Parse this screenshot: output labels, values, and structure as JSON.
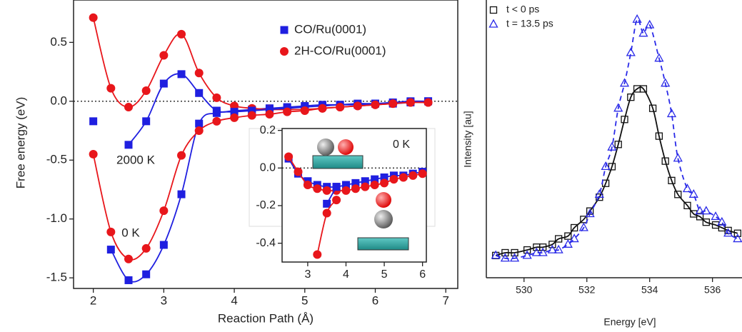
{
  "chart_data": [
    {
      "type": "line",
      "xlabel": "Reaction Path (Å)",
      "ylabel": "Free energy (eV)",
      "x": [
        2.0,
        2.25,
        2.5,
        2.75,
        3.0,
        3.25,
        3.5,
        3.75,
        4.0,
        4.25,
        4.5,
        4.75,
        5.0,
        5.25,
        5.5,
        5.75,
        6.0,
        6.25,
        6.5,
        6.75
      ],
      "series": [
        {
          "name": "CO/Ru(0001)",
          "color": "#1f1fe0",
          "marker": "square",
          "line": "solid",
          "values": [
            -0.17,
            null,
            -0.37,
            -0.17,
            0.15,
            0.23,
            0.07,
            -0.08,
            -0.08,
            -0.07,
            -0.06,
            -0.05,
            -0.04,
            -0.03,
            -0.03,
            -0.02,
            -0.02,
            -0.01,
            0.0,
            0.0
          ]
        },
        {
          "name": "2H-CO/Ru(0001)",
          "color": "#e8161b",
          "marker": "circle",
          "line": "solid",
          "values": [
            0.71,
            0.11,
            -0.05,
            0.09,
            0.39,
            0.57,
            0.24,
            0.03,
            -0.04,
            -0.06,
            -0.07,
            -0.07,
            -0.07,
            -0.06,
            -0.05,
            -0.04,
            -0.03,
            -0.02,
            -0.01,
            -0.01
          ]
        },
        {
          "color": "#1f1fe0",
          "marker": "square",
          "line": "solid",
          "values": [
            null,
            -1.26,
            -1.52,
            -1.47,
            -1.22,
            -0.79,
            -0.19,
            -0.1,
            -0.09,
            -0.08,
            -0.07,
            -0.06,
            -0.05,
            -0.04,
            -0.03,
            -0.03,
            -0.02,
            -0.02,
            -0.01,
            0.0
          ]
        },
        {
          "color": "#e8161b",
          "marker": "circle",
          "line": "solid",
          "values": [
            -0.45,
            -1.11,
            -1.34,
            -1.25,
            -0.93,
            -0.46,
            -0.25,
            -0.17,
            -0.14,
            -0.12,
            -0.11,
            -0.09,
            -0.08,
            -0.06,
            -0.05,
            -0.04,
            -0.03,
            -0.02,
            -0.01,
            -0.01
          ]
        }
      ],
      "annotations": [
        "2000 K",
        "0 K"
      ],
      "xlim": [
        1.72,
        7.17
      ],
      "ylim": [
        -1.59,
        0.86
      ],
      "xticks": [
        2,
        3,
        4,
        5,
        6,
        7
      ],
      "yticks": [
        0.5,
        {
          "value": 0,
          "label": "0.0"
        },
        -0.5,
        {
          "value": -1,
          "label": "-1.0"
        },
        -1.5
      ],
      "hline": 0,
      "legend": "upper right"
    },
    {
      "type": "line",
      "x": [
        2.5,
        2.75,
        3.0,
        3.25,
        3.5,
        3.75,
        4.0,
        4.25,
        4.5,
        4.75,
        5.0,
        5.25,
        5.5,
        5.75,
        6.0
      ],
      "series": [
        {
          "color": "#1f1fe0",
          "marker": "square",
          "line": "solid",
          "values": [
            0.05,
            -0.03,
            -0.07,
            -0.09,
            -0.1,
            -0.1,
            -0.09,
            -0.08,
            -0.07,
            -0.06,
            -0.05,
            -0.04,
            -0.04,
            -0.03,
            -0.02
          ]
        },
        {
          "color": "#e8161b",
          "marker": "circle",
          "line": "solid",
          "values": [
            0.06,
            -0.02,
            -0.09,
            -0.11,
            -0.12,
            -0.12,
            -0.12,
            -0.11,
            -0.1,
            -0.09,
            -0.08,
            -0.06,
            -0.05,
            -0.04,
            -0.03
          ]
        },
        {
          "color": "#1f1fe0",
          "marker": "square",
          "line": "solid",
          "values": [
            null,
            null,
            null,
            null,
            -0.19,
            -0.1,
            null,
            null,
            null,
            null,
            null,
            null,
            null,
            null,
            null
          ]
        },
        {
          "color": "#e8161b",
          "marker": "circle",
          "line": "solid",
          "values": [
            null,
            null,
            null,
            -0.46,
            -0.24,
            -0.17,
            null,
            null,
            null,
            null,
            null,
            null,
            null,
            null,
            null
          ]
        }
      ],
      "annotations": [
        "0 K"
      ],
      "xlim": [
        2.33,
        6.1
      ],
      "ylim": [
        -0.5,
        0.21
      ],
      "xticks": [
        3,
        4,
        5,
        6
      ],
      "yticks": [
        0.2,
        {
          "value": 0,
          "label": "0.0"
        },
        -0.2,
        -0.4
      ],
      "hline": 0
    },
    {
      "type": "line",
      "xlabel": "Energy [eV]",
      "ylabel": "Intensity [au]",
      "series": [
        {
          "name": "t < 0 ps",
          "color": "#111111",
          "marker": "open-square",
          "line": "solid",
          "x": [
            529.1,
            529.4,
            529.7,
            530.1,
            530.4,
            530.6,
            530.9,
            531.1,
            531.4,
            531.6,
            531.9,
            532.1,
            532.4,
            532.6,
            532.8,
            533.0,
            533.2,
            533.4,
            533.6,
            533.8,
            534.1,
            534.3,
            534.5,
            534.7,
            534.9,
            535.2,
            535.4,
            535.6,
            535.8,
            536.1,
            536.3,
            536.5,
            536.8
          ],
          "values": [
            0.08,
            0.09,
            0.09,
            0.1,
            0.11,
            0.11,
            0.12,
            0.14,
            0.15,
            0.18,
            0.21,
            0.24,
            0.29,
            0.34,
            0.4,
            0.48,
            0.57,
            0.65,
            0.68,
            0.68,
            0.61,
            0.51,
            0.42,
            0.35,
            0.3,
            0.26,
            0.23,
            0.22,
            0.2,
            0.19,
            0.18,
            0.17,
            0.16
          ]
        },
        {
          "name": "t = 13.5 ps",
          "color": "#2a2ae8",
          "marker": "open-triangle",
          "line": "dashed",
          "x": [
            529.1,
            529.4,
            529.7,
            530.1,
            530.4,
            530.6,
            530.9,
            531.1,
            531.4,
            531.6,
            531.9,
            532.1,
            532.4,
            532.6,
            532.8,
            533.0,
            533.2,
            533.4,
            533.6,
            533.8,
            534.0,
            534.3,
            534.5,
            534.7,
            534.9,
            535.2,
            535.4,
            535.6,
            535.8,
            536.1,
            536.3,
            536.5,
            536.8
          ],
          "values": [
            0.08,
            0.07,
            0.07,
            0.08,
            0.09,
            0.09,
            0.1,
            0.1,
            0.12,
            0.14,
            0.18,
            0.23,
            0.3,
            0.4,
            0.47,
            0.61,
            0.7,
            0.81,
            0.93,
            0.88,
            0.91,
            0.79,
            0.7,
            0.59,
            0.43,
            0.32,
            0.3,
            0.24,
            0.24,
            0.22,
            0.2,
            0.16,
            0.14
          ]
        }
      ],
      "xlim": [
        528.8,
        536.94
      ],
      "ylim": [
        0,
        1
      ],
      "xticks": [
        530,
        532,
        534,
        536
      ],
      "legend": "upper left"
    }
  ]
}
